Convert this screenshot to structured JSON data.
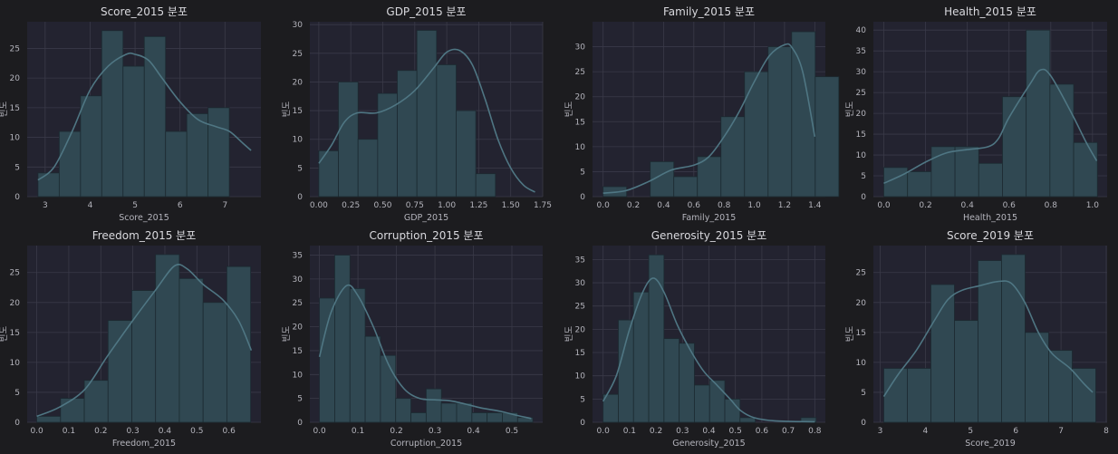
{
  "chart_data": [
    {
      "type": "bar",
      "title": "Score_2015 분포",
      "xlabel": "Score_2015",
      "ylabel": "빈도",
      "bin_start": 2.84,
      "bin_width": 0.473,
      "values": [
        4,
        11,
        17,
        28,
        22,
        27,
        11,
        14,
        15
      ],
      "xlim": [
        2.6,
        7.8
      ],
      "ylim": [
        0,
        29.5
      ],
      "xticks": [
        3,
        4,
        5,
        6,
        7
      ],
      "xticklabels": [
        "3",
        "4",
        "5",
        "6",
        "7"
      ],
      "yticks": [
        0,
        5,
        10,
        15,
        20,
        25
      ],
      "yticklabels": [
        "0",
        "5",
        "10",
        "15",
        "20",
        "25"
      ],
      "kde": [
        [
          2.84,
          2.8
        ],
        [
          3.2,
          5
        ],
        [
          3.6,
          11
        ],
        [
          4.0,
          18
        ],
        [
          4.4,
          22
        ],
        [
          4.8,
          24
        ],
        [
          5.0,
          24
        ],
        [
          5.3,
          23
        ],
        [
          5.6,
          20
        ],
        [
          6.0,
          16
        ],
        [
          6.4,
          13
        ],
        [
          6.8,
          11.8
        ],
        [
          7.1,
          11
        ],
        [
          7.4,
          9
        ],
        [
          7.58,
          7.8
        ]
      ]
    },
    {
      "type": "bar",
      "title": "GDP_2015 분포",
      "xlabel": "GDP_2015",
      "ylabel": "빈도",
      "bin_start": 0.0,
      "bin_width": 0.1534,
      "values": [
        8,
        20,
        10,
        18,
        22,
        29,
        23,
        15,
        4
      ],
      "xlim": [
        -0.07,
        1.75
      ],
      "ylim": [
        0,
        30.5
      ],
      "xticks": [
        0,
        0.25,
        0.5,
        0.75,
        1.0,
        1.25,
        1.5,
        1.75
      ],
      "xticklabels": [
        "0.00",
        "0.25",
        "0.50",
        "0.75",
        "1.00",
        "1.25",
        "1.50",
        "1.75"
      ],
      "yticks": [
        0,
        5,
        10,
        15,
        20,
        25,
        30
      ],
      "yticklabels": [
        "0",
        "5",
        "10",
        "15",
        "20",
        "25",
        "30"
      ],
      "kde": [
        [
          0.0,
          5.8
        ],
        [
          0.1,
          9
        ],
        [
          0.2,
          13
        ],
        [
          0.3,
          14.6
        ],
        [
          0.45,
          14.6
        ],
        [
          0.6,
          16
        ],
        [
          0.75,
          18.5
        ],
        [
          0.9,
          22.5
        ],
        [
          1.0,
          25.2
        ],
        [
          1.1,
          25.5
        ],
        [
          1.2,
          23
        ],
        [
          1.3,
          17
        ],
        [
          1.4,
          10
        ],
        [
          1.5,
          5
        ],
        [
          1.6,
          2
        ],
        [
          1.69,
          0.8
        ]
      ]
    },
    {
      "type": "bar",
      "title": "Family_2015 분포",
      "xlabel": "Family_2015",
      "ylabel": "빈도",
      "bin_start": 0.0,
      "bin_width": 0.1559,
      "values": [
        2,
        0,
        7,
        4,
        8,
        16,
        25,
        30,
        33,
        24
      ],
      "xlim": [
        -0.07,
        1.47
      ],
      "ylim": [
        0,
        35
      ],
      "xticks": [
        0,
        0.2,
        0.4,
        0.6,
        0.8,
        1.0,
        1.2,
        1.4
      ],
      "xticklabels": [
        "0.0",
        "0.2",
        "0.4",
        "0.6",
        "0.8",
        "1.0",
        "1.2",
        "1.4"
      ],
      "yticks": [
        0,
        5,
        10,
        15,
        20,
        25,
        30
      ],
      "yticklabels": [
        "0",
        "5",
        "10",
        "15",
        "20",
        "25",
        "30"
      ],
      "kde": [
        [
          0.0,
          0.7
        ],
        [
          0.15,
          1.2
        ],
        [
          0.3,
          3
        ],
        [
          0.45,
          5.3
        ],
        [
          0.6,
          6.3
        ],
        [
          0.7,
          8
        ],
        [
          0.8,
          12
        ],
        [
          0.9,
          17
        ],
        [
          1.0,
          23
        ],
        [
          1.1,
          28.2
        ],
        [
          1.2,
          30.4
        ],
        [
          1.25,
          29.8
        ],
        [
          1.32,
          25
        ],
        [
          1.4,
          12
        ]
      ]
    },
    {
      "type": "bar",
      "title": "Health_2015 분포",
      "xlabel": "Health_2015",
      "ylabel": "빈도",
      "bin_start": 0.0,
      "bin_width": 0.1137,
      "values": [
        7,
        6,
        12,
        12,
        8,
        24,
        40,
        27,
        13
      ],
      "xlim": [
        -0.05,
        1.07
      ],
      "ylim": [
        0,
        42
      ],
      "xticks": [
        0,
        0.2,
        0.4,
        0.6,
        0.8,
        1.0
      ],
      "xticklabels": [
        "0.0",
        "0.2",
        "0.4",
        "0.6",
        "0.8",
        "1.0"
      ],
      "yticks": [
        0,
        5,
        10,
        15,
        20,
        25,
        30,
        35,
        40
      ],
      "yticklabels": [
        "0",
        "5",
        "10",
        "15",
        "20",
        "25",
        "30",
        "35",
        "40"
      ],
      "kde": [
        [
          0.0,
          3.2
        ],
        [
          0.1,
          5.5
        ],
        [
          0.2,
          8.3
        ],
        [
          0.3,
          10.5
        ],
        [
          0.4,
          11.3
        ],
        [
          0.5,
          12
        ],
        [
          0.55,
          14
        ],
        [
          0.6,
          19
        ],
        [
          0.7,
          27
        ],
        [
          0.75,
          30.4
        ],
        [
          0.8,
          29
        ],
        [
          0.9,
          20
        ],
        [
          0.97,
          13
        ],
        [
          1.02,
          8.6
        ]
      ]
    },
    {
      "type": "bar",
      "title": "Freedom_2015 분포",
      "xlabel": "Freedom_2015",
      "ylabel": "빈도",
      "bin_start": 0.0,
      "bin_width": 0.0742,
      "values": [
        1,
        4,
        7,
        17,
        22,
        28,
        24,
        20,
        26
      ],
      "xlim": [
        -0.03,
        0.7
      ],
      "ylim": [
        0,
        29.5
      ],
      "xticks": [
        0,
        0.1,
        0.2,
        0.3,
        0.4,
        0.5,
        0.6
      ],
      "xticklabels": [
        "0.0",
        "0.1",
        "0.2",
        "0.3",
        "0.4",
        "0.5",
        "0.6"
      ],
      "yticks": [
        0,
        5,
        10,
        15,
        20,
        25
      ],
      "yticklabels": [
        "0",
        "5",
        "10",
        "15",
        "20",
        "25"
      ],
      "kde": [
        [
          0.0,
          1
        ],
        [
          0.07,
          2.5
        ],
        [
          0.15,
          5.5
        ],
        [
          0.22,
          11
        ],
        [
          0.3,
          17
        ],
        [
          0.37,
          22
        ],
        [
          0.43,
          26.1
        ],
        [
          0.47,
          25.6
        ],
        [
          0.52,
          23
        ],
        [
          0.58,
          20.5
        ],
        [
          0.63,
          17
        ],
        [
          0.67,
          12
        ]
      ]
    },
    {
      "type": "bar",
      "title": "Corruption_2015 분포",
      "xlabel": "Corruption_2015",
      "ylabel": "빈도",
      "bin_start": 0.0,
      "bin_width": 0.0396,
      "values": [
        26,
        35,
        28,
        18,
        14,
        5,
        2,
        7,
        4,
        4,
        2,
        2,
        2,
        1
      ],
      "xlim": [
        -0.025,
        0.58
      ],
      "ylim": [
        0,
        37
      ],
      "xticks": [
        0,
        0.1,
        0.2,
        0.3,
        0.4,
        0.5
      ],
      "xticklabels": [
        "0.0",
        "0.1",
        "0.2",
        "0.3",
        "0.4",
        "0.5"
      ],
      "yticks": [
        0,
        5,
        10,
        15,
        20,
        25,
        30,
        35
      ],
      "yticklabels": [
        "0",
        "5",
        "10",
        "15",
        "20",
        "25",
        "30",
        "35"
      ],
      "kde": [
        [
          0.0,
          13.7
        ],
        [
          0.03,
          23
        ],
        [
          0.07,
          28.6
        ],
        [
          0.1,
          26.5
        ],
        [
          0.14,
          20
        ],
        [
          0.18,
          12
        ],
        [
          0.22,
          7
        ],
        [
          0.26,
          5
        ],
        [
          0.3,
          4.7
        ],
        [
          0.34,
          4.5
        ],
        [
          0.38,
          3.8
        ],
        [
          0.42,
          3
        ],
        [
          0.47,
          2.3
        ],
        [
          0.51,
          1.5
        ],
        [
          0.55,
          0.8
        ]
      ]
    },
    {
      "type": "bar",
      "title": "Generosity_2015 분포",
      "xlabel": "Generosity_2015",
      "ylabel": "빈도",
      "bin_start": 0.0,
      "bin_width": 0.0575,
      "values": [
        6,
        22,
        28,
        36,
        18,
        17,
        8,
        9,
        5,
        1,
        0,
        0,
        0,
        1
      ],
      "xlim": [
        -0.04,
        0.84
      ],
      "ylim": [
        0,
        38
      ],
      "xticks": [
        0,
        0.1,
        0.2,
        0.3,
        0.4,
        0.5,
        0.6,
        0.7,
        0.8
      ],
      "xticklabels": [
        "0.0",
        "0.1",
        "0.2",
        "0.3",
        "0.4",
        "0.5",
        "0.6",
        "0.7",
        "0.8"
      ],
      "yticks": [
        0,
        5,
        10,
        15,
        20,
        25,
        30,
        35
      ],
      "yticklabels": [
        "0",
        "5",
        "10",
        "15",
        "20",
        "25",
        "30",
        "35"
      ],
      "kde": [
        [
          0.0,
          4.5
        ],
        [
          0.05,
          10
        ],
        [
          0.1,
          20
        ],
        [
          0.15,
          28
        ],
        [
          0.19,
          31
        ],
        [
          0.23,
          28
        ],
        [
          0.28,
          21
        ],
        [
          0.33,
          15.5
        ],
        [
          0.38,
          11
        ],
        [
          0.43,
          8
        ],
        [
          0.48,
          5
        ],
        [
          0.52,
          2.5
        ],
        [
          0.57,
          1
        ],
        [
          0.65,
          0.3
        ],
        [
          0.8,
          0.1
        ]
      ]
    },
    {
      "type": "bar",
      "title": "Score_2019 분포",
      "xlabel": "Score_2019",
      "ylabel": "빈도",
      "bin_start": 3.08,
      "bin_width": 0.521,
      "values": [
        9,
        9,
        23,
        17,
        27,
        28,
        15,
        12,
        9
      ],
      "xlim": [
        2.85,
        8.02
      ],
      "ylim": [
        0,
        29.5
      ],
      "xticks": [
        3,
        4,
        5,
        6,
        7,
        8
      ],
      "xticklabels": [
        "3",
        "4",
        "5",
        "6",
        "7",
        "8"
      ],
      "yticks": [
        0,
        5,
        10,
        15,
        20,
        25
      ],
      "yticklabels": [
        "0",
        "5",
        "10",
        "15",
        "20",
        "25"
      ],
      "kde": [
        [
          3.08,
          4.3
        ],
        [
          3.4,
          8
        ],
        [
          3.8,
          12
        ],
        [
          4.2,
          17
        ],
        [
          4.5,
          20.5
        ],
        [
          4.8,
          22
        ],
        [
          5.2,
          22.8
        ],
        [
          5.6,
          23.5
        ],
        [
          5.9,
          23.2
        ],
        [
          6.2,
          20
        ],
        [
          6.5,
          15
        ],
        [
          6.8,
          11.5
        ],
        [
          7.2,
          9
        ],
        [
          7.5,
          6.5
        ],
        [
          7.7,
          5
        ]
      ]
    }
  ]
}
